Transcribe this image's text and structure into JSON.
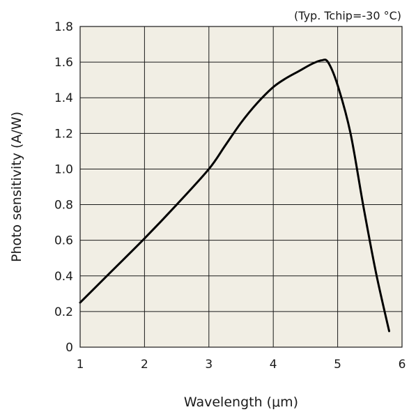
{
  "chart_data": {
    "type": "line",
    "annotation": "(Typ. Tchip=-30 °C)",
    "xlabel": "Wavelength (μm)",
    "ylabel": "Photo sensitivity (A/W)",
    "xlim": [
      1,
      6
    ],
    "ylim": [
      0,
      1.8
    ],
    "x_ticks": [
      1,
      2,
      3,
      4,
      5,
      6
    ],
    "x_tick_labels": [
      "1",
      "2",
      "3",
      "4",
      "5",
      "6"
    ],
    "y_ticks": [
      0,
      0.2,
      0.4,
      0.6,
      0.8,
      1.0,
      1.2,
      1.4,
      1.6,
      1.8
    ],
    "y_tick_labels": [
      "0",
      "0.2",
      "0.4",
      "0.6",
      "0.8",
      "1.0",
      "1.2",
      "1.4",
      "1.6",
      "1.8"
    ],
    "grid": true,
    "colors": {
      "plot_background": "#f1eee4",
      "line": "#000000",
      "grid": "#1a1a1a"
    },
    "series": [
      {
        "x": [
          1.0,
          1.5,
          2.0,
          2.5,
          3.0,
          3.25,
          3.5,
          3.75,
          4.0,
          4.2,
          4.4,
          4.6,
          4.75,
          4.85,
          5.0,
          5.2,
          5.4,
          5.6,
          5.8
        ],
        "y": [
          0.25,
          0.43,
          0.61,
          0.8,
          1.0,
          1.13,
          1.26,
          1.37,
          1.46,
          1.51,
          1.55,
          1.59,
          1.61,
          1.6,
          1.47,
          1.2,
          0.79,
          0.41,
          0.09
        ]
      }
    ]
  }
}
